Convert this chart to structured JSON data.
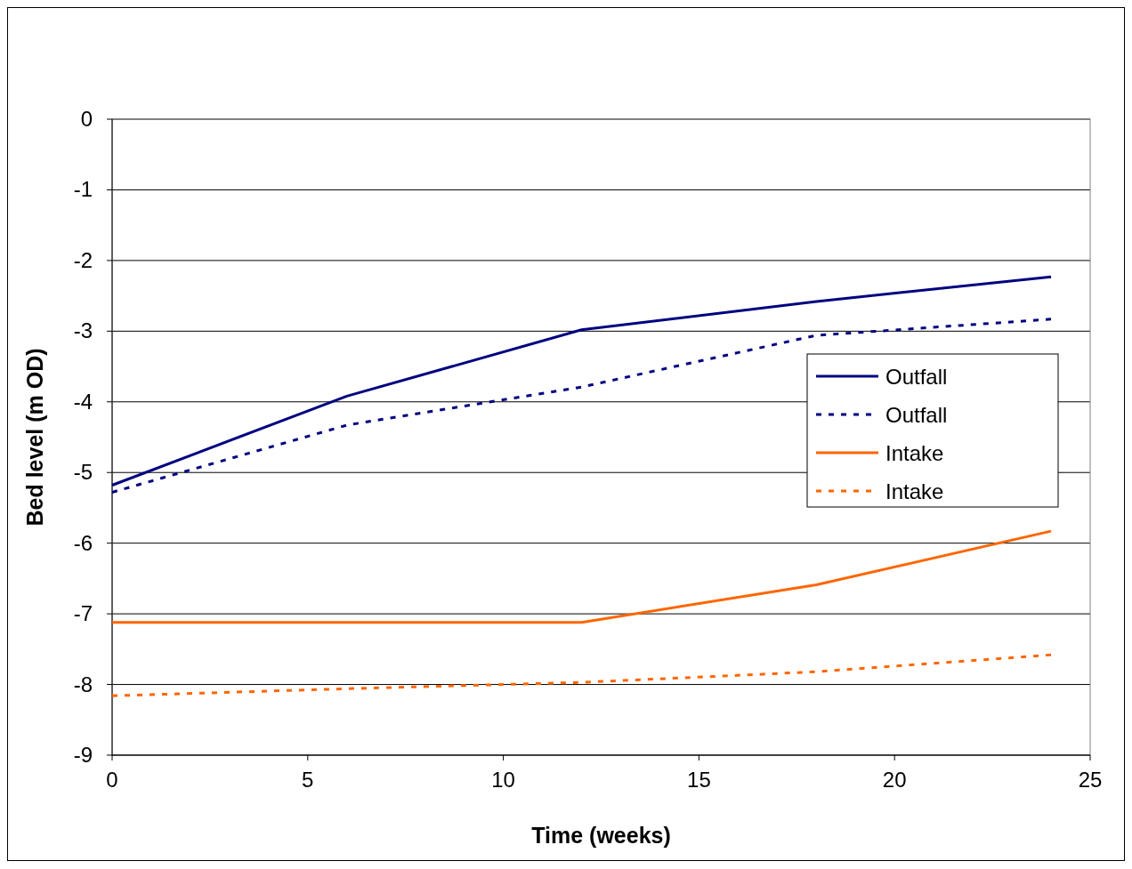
{
  "chart_data": {
    "type": "line",
    "xlabel": "Time (weeks)",
    "ylabel": "Bed level (m OD)",
    "x": [
      0,
      6,
      12,
      18,
      24
    ],
    "series": [
      {
        "name": "Outfall",
        "color": "#000080",
        "line_style": "solid",
        "values": [
          -5.18,
          -3.92,
          -2.98,
          -2.58,
          -2.23
        ]
      },
      {
        "name": "Outfall",
        "color": "#000080",
        "line_style": "dotted",
        "values": [
          -5.28,
          -4.33,
          -3.79,
          -3.06,
          -2.83
        ]
      },
      {
        "name": "Intake",
        "color": "#ff6600",
        "line_style": "solid",
        "values": [
          -7.12,
          -7.12,
          -7.12,
          -6.59,
          -5.83
        ]
      },
      {
        "name": "Intake",
        "color": "#ff6600",
        "line_style": "dotted",
        "values": [
          -8.16,
          -8.06,
          -7.97,
          -7.82,
          -7.58
        ]
      }
    ],
    "xlim": [
      0,
      25
    ],
    "xticks": [
      0,
      5,
      10,
      15,
      20,
      25
    ],
    "ylim": [
      -9,
      0
    ],
    "yticks": [
      -9,
      -8,
      -7,
      -6,
      -5,
      -4,
      -3,
      -2,
      -1,
      0
    ],
    "grid": "y",
    "legend": "right",
    "marker": "none"
  }
}
